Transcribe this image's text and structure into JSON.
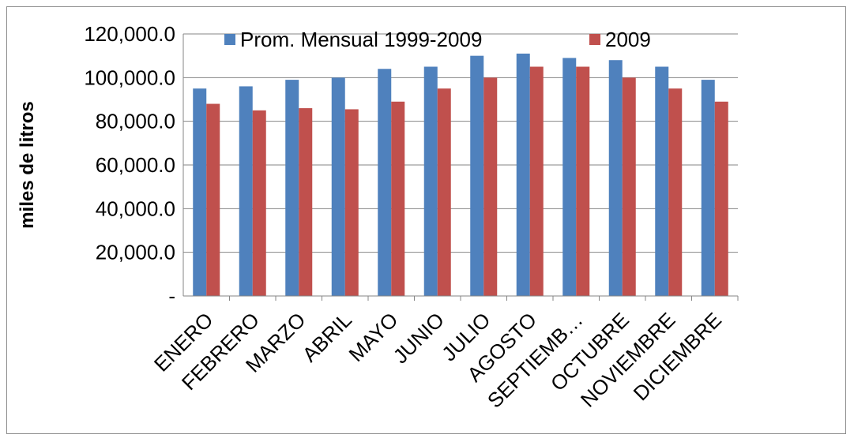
{
  "chart_data": {
    "type": "bar",
    "title": "",
    "xlabel": "",
    "ylabel": "miles de litros",
    "ylim": [
      0,
      120000
    ],
    "y_ticks": [
      0,
      20000,
      40000,
      60000,
      80000,
      100000,
      120000
    ],
    "y_tick_labels": [
      "-",
      "20,000.0",
      "40,000.0",
      "60,000.0",
      "80,000.0",
      "100,000.0",
      "120,000.0"
    ],
    "grid": true,
    "legend_position": "top",
    "categories": [
      "ENERO",
      "FEBRERO",
      "MARZO",
      "ABRIL",
      "MAYO",
      "JUNIO",
      "JULIO",
      "AGOSTO",
      "SEPTIEMB…",
      "OCTUBRE",
      "NOVIEMBRE",
      "DICIEMBRE"
    ],
    "series": [
      {
        "name": "Prom.  Mensual 1999-2009",
        "color": "#4f81bd",
        "values": [
          95000,
          96000,
          99000,
          100000,
          104000,
          105000,
          110000,
          111000,
          109000,
          108000,
          105000,
          99000
        ]
      },
      {
        "name": "2009",
        "color": "#c0504d",
        "values": [
          88000,
          85000,
          86000,
          85500,
          89000,
          95000,
          100000,
          105000,
          105000,
          100000,
          95000,
          89000
        ]
      }
    ]
  }
}
